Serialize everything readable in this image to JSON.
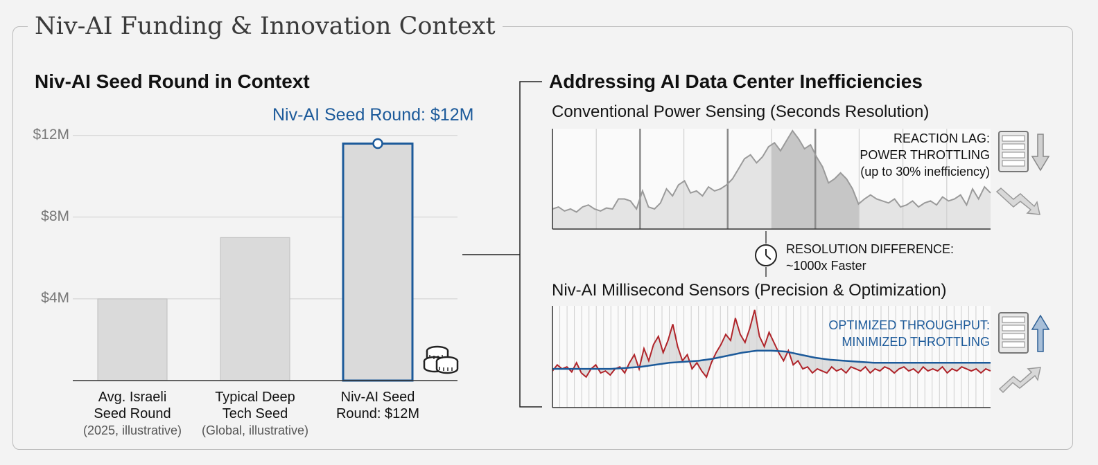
{
  "page": {
    "title": "Niv-AI Funding & Innovation Context"
  },
  "colors": {
    "accent": "#1c5a9a",
    "bar_fill": "#dadada",
    "red_signal": "#b0242a",
    "axis": "#333333"
  },
  "left_panel": {
    "title": "Niv-AI Seed Round in Context",
    "highlight_label": "Niv-AI Seed Round: $12M",
    "icon": "coins-icon"
  },
  "chart_data": [
    {
      "type": "bar",
      "title": "Niv-AI Seed Round in Context",
      "categories": [
        "Avg. Israeli Seed Round",
        "Typical Deep Tech Seed",
        "Niv-AI Seed Round: $12M"
      ],
      "category_lines": [
        [
          "Avg. Israeli",
          "Seed Round",
          "(2025, illustrative)"
        ],
        [
          "Typical Deep",
          "Tech Seed",
          "(Global, illustrative)"
        ],
        [
          "Niv-AI Seed",
          "Round: $12M",
          ""
        ]
      ],
      "values": [
        4,
        7,
        11.6
      ],
      "unit": "$M",
      "yticks": [
        4,
        8,
        12
      ],
      "ytick_labels": [
        "$4M",
        "$8M",
        "$12M"
      ],
      "ylim": [
        0,
        12.6
      ],
      "highlight_index": 2,
      "highlight_label": "Niv-AI Seed Round: $12M"
    },
    {
      "type": "area",
      "title": "Conventional Power Sensing (Seconds Resolution)",
      "y_range": [
        0,
        100
      ],
      "series": [
        {
          "name": "power",
          "values": [
            20,
            22,
            18,
            20,
            17,
            22,
            24,
            20,
            18,
            21,
            20,
            30,
            30,
            28,
            20,
            38,
            22,
            20,
            26,
            40,
            33,
            44,
            48,
            36,
            38,
            33,
            42,
            38,
            40,
            44,
            50,
            60,
            70,
            74,
            66,
            72,
            82,
            86,
            78,
            88,
            98,
            90,
            80,
            84,
            72,
            62,
            46,
            50,
            56,
            50,
            40,
            25,
            30,
            34,
            30,
            28,
            26,
            30,
            22,
            24,
            28,
            22,
            26,
            28,
            24,
            32,
            28,
            30,
            34,
            24,
            40,
            30,
            42,
            36
          ]
        }
      ],
      "highlight_range": [
        0.5,
        0.7
      ],
      "annotation": [
        "REACTION LAG:",
        "POWER THROTTLING",
        "(up to 30% inefficiency)"
      ]
    },
    {
      "type": "line",
      "title": "Niv-AI Millisecond Sensors (Precision & Optimization)",
      "y_range": [
        0,
        100
      ],
      "series": [
        {
          "name": "millisecond",
          "color": "red",
          "values": [
            36,
            42,
            38,
            40,
            35,
            44,
            34,
            30,
            38,
            42,
            34,
            36,
            32,
            38,
            40,
            34,
            44,
            52,
            38,
            58,
            46,
            62,
            70,
            54,
            66,
            82,
            60,
            46,
            52,
            38,
            44,
            36,
            30,
            44,
            54,
            62,
            72,
            66,
            88,
            72,
            64,
            78,
            96,
            70,
            60,
            74,
            64,
            54,
            46,
            56,
            42,
            46,
            38,
            40,
            34,
            38,
            36,
            34,
            40,
            36,
            38,
            34,
            40,
            38,
            36,
            40,
            34,
            38,
            36,
            40,
            38,
            34,
            38,
            40,
            36,
            38,
            34,
            40,
            36,
            38,
            36,
            40,
            34,
            38,
            36,
            40,
            38,
            36,
            38,
            34,
            38,
            36
          ]
        },
        {
          "name": "optimized",
          "color": "blue",
          "values": [
            38,
            38,
            38,
            38,
            38,
            39,
            40,
            42,
            44,
            45,
            46,
            48,
            51,
            54,
            56,
            56,
            55,
            52,
            49,
            47,
            46,
            45,
            44,
            44,
            44,
            44,
            44,
            44,
            44,
            44,
            44
          ]
        }
      ],
      "annotation": [
        "OPTIMIZED THROUGHPUT:",
        "MINIMIZED THROTTLING"
      ]
    }
  ],
  "right_panel": {
    "title": "Addressing AI Data Center Inefficiencies",
    "conventional_title": "Conventional Power Sensing (Seconds Resolution)",
    "lag_lines": [
      "REACTION LAG:",
      "POWER THROTTLING",
      "(up to 30% inefficiency)"
    ],
    "resolution_lines": [
      "RESOLUTION DIFFERENCE:",
      "~1000x Faster"
    ],
    "niv_title": "Niv-AI Millisecond Sensors (Precision & Optimization)",
    "optimized_lines": [
      "OPTIMIZED THROUGHPUT:",
      "MINIMIZED THROTTLING"
    ],
    "icons": [
      "server-icon",
      "arrow-down-icon",
      "trend-down-icon",
      "clock-icon",
      "arrow-up-icon",
      "trend-up-icon"
    ]
  }
}
